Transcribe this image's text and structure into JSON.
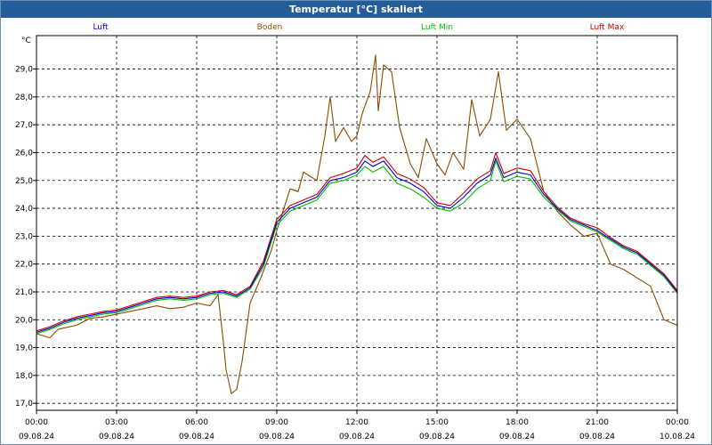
{
  "window": {
    "title": "Temperatur [°C] skaliert"
  },
  "chart_data": {
    "type": "line",
    "title": "Temperatur [°C] skaliert",
    "ylabel": "°C",
    "ylim": [
      16.75,
      30.2
    ],
    "xlim": [
      0,
      24
    ],
    "grid": true,
    "y_ticks": [
      "17,0",
      "18,0",
      "19,0",
      "20,0",
      "21,0",
      "22,0",
      "23,0",
      "24,0",
      "25,0",
      "26,0",
      "27,0",
      "28,0",
      "29,0"
    ],
    "x_ticks": [
      {
        "time": "00:00",
        "date": "09.08.24"
      },
      {
        "time": "03:00",
        "date": "09.08.24"
      },
      {
        "time": "06:00",
        "date": "09.08.24"
      },
      {
        "time": "09:00",
        "date": "09.08.24"
      },
      {
        "time": "12:00",
        "date": "09.08.24"
      },
      {
        "time": "15:00",
        "date": "09.08.24"
      },
      {
        "time": "18:00",
        "date": "09.08.24"
      },
      {
        "time": "21:00",
        "date": "09.08.24"
      },
      {
        "time": "00:00",
        "date": "10.08.24"
      }
    ],
    "series": [
      {
        "name": "Luft",
        "color": "#0000cc",
        "points": [
          [
            0,
            19.55
          ],
          [
            0.5,
            19.7
          ],
          [
            1,
            19.9
          ],
          [
            1.5,
            20.05
          ],
          [
            2,
            20.15
          ],
          [
            2.5,
            20.25
          ],
          [
            3,
            20.3
          ],
          [
            3.5,
            20.45
          ],
          [
            4,
            20.6
          ],
          [
            4.5,
            20.75
          ],
          [
            5,
            20.8
          ],
          [
            5.5,
            20.75
          ],
          [
            6,
            20.8
          ],
          [
            6.5,
            20.95
          ],
          [
            7,
            21.0
          ],
          [
            7.5,
            20.85
          ],
          [
            8,
            21.15
          ],
          [
            8.5,
            22.0
          ],
          [
            9,
            23.5
          ],
          [
            9.5,
            24.0
          ],
          [
            10,
            24.2
          ],
          [
            10.5,
            24.4
          ],
          [
            11,
            25.0
          ],
          [
            11.5,
            25.1
          ],
          [
            12,
            25.3
          ],
          [
            12.3,
            25.7
          ],
          [
            12.6,
            25.5
          ],
          [
            13,
            25.7
          ],
          [
            13.5,
            25.1
          ],
          [
            14,
            24.9
          ],
          [
            14.5,
            24.6
          ],
          [
            15,
            24.1
          ],
          [
            15.5,
            24.0
          ],
          [
            16,
            24.4
          ],
          [
            16.5,
            24.9
          ],
          [
            17,
            25.2
          ],
          [
            17.2,
            25.8
          ],
          [
            17.5,
            25.1
          ],
          [
            18,
            25.3
          ],
          [
            18.5,
            25.2
          ],
          [
            19,
            24.5
          ],
          [
            19.5,
            24.0
          ],
          [
            20,
            23.6
          ],
          [
            20.5,
            23.4
          ],
          [
            21,
            23.2
          ],
          [
            21.5,
            22.9
          ],
          [
            22,
            22.6
          ],
          [
            22.5,
            22.4
          ],
          [
            23,
            22.0
          ],
          [
            23.5,
            21.6
          ],
          [
            24,
            21.0
          ]
        ]
      },
      {
        "name": "Boden",
        "color": "#8b4a00",
        "points": [
          [
            0,
            19.5
          ],
          [
            0.5,
            19.35
          ],
          [
            0.8,
            19.65
          ],
          [
            1,
            19.7
          ],
          [
            1.5,
            19.8
          ],
          [
            2,
            20.05
          ],
          [
            2.5,
            20.1
          ],
          [
            3,
            20.2
          ],
          [
            3.5,
            20.3
          ],
          [
            4,
            20.4
          ],
          [
            4.5,
            20.5
          ],
          [
            5,
            20.4
          ],
          [
            5.5,
            20.45
          ],
          [
            6,
            20.6
          ],
          [
            6.5,
            20.5
          ],
          [
            6.8,
            20.9
          ],
          [
            7,
            19.2
          ],
          [
            7.1,
            18.2
          ],
          [
            7.3,
            17.35
          ],
          [
            7.5,
            17.5
          ],
          [
            7.7,
            18.5
          ],
          [
            8,
            20.6
          ],
          [
            8.4,
            21.5
          ],
          [
            8.8,
            22.5
          ],
          [
            9,
            23.2
          ],
          [
            9.5,
            24.7
          ],
          [
            9.8,
            24.6
          ],
          [
            10,
            25.3
          ],
          [
            10.5,
            25.0
          ],
          [
            10.8,
            26.6
          ],
          [
            11,
            28.0
          ],
          [
            11.2,
            26.4
          ],
          [
            11.5,
            26.9
          ],
          [
            11.8,
            26.4
          ],
          [
            12,
            26.6
          ],
          [
            12.2,
            27.4
          ],
          [
            12.5,
            28.2
          ],
          [
            12.7,
            29.5
          ],
          [
            12.8,
            27.5
          ],
          [
            13,
            29.15
          ],
          [
            13.3,
            28.9
          ],
          [
            13.6,
            26.9
          ],
          [
            14,
            25.6
          ],
          [
            14.3,
            25.1
          ],
          [
            14.6,
            26.5
          ],
          [
            15,
            25.6
          ],
          [
            15.3,
            25.2
          ],
          [
            15.6,
            26.0
          ],
          [
            16,
            25.4
          ],
          [
            16.3,
            27.9
          ],
          [
            16.6,
            26.6
          ],
          [
            17,
            27.2
          ],
          [
            17.3,
            28.9
          ],
          [
            17.6,
            26.8
          ],
          [
            18,
            27.2
          ],
          [
            18.5,
            26.5
          ],
          [
            19,
            24.6
          ],
          [
            19.5,
            23.9
          ],
          [
            20,
            23.4
          ],
          [
            20.5,
            23.0
          ],
          [
            21,
            23.1
          ],
          [
            21.5,
            22.0
          ],
          [
            22,
            21.8
          ],
          [
            22.5,
            21.5
          ],
          [
            23,
            21.2
          ],
          [
            23.5,
            20.0
          ],
          [
            24,
            19.8
          ]
        ]
      },
      {
        "name": "Luft Min",
        "color": "#00bb00",
        "points": [
          [
            0,
            19.5
          ],
          [
            0.5,
            19.65
          ],
          [
            1,
            19.85
          ],
          [
            1.5,
            20.0
          ],
          [
            2,
            20.1
          ],
          [
            2.5,
            20.2
          ],
          [
            3,
            20.25
          ],
          [
            3.5,
            20.4
          ],
          [
            4,
            20.55
          ],
          [
            4.5,
            20.7
          ],
          [
            5,
            20.75
          ],
          [
            5.5,
            20.7
          ],
          [
            6,
            20.75
          ],
          [
            6.5,
            20.9
          ],
          [
            7,
            20.95
          ],
          [
            7.5,
            20.8
          ],
          [
            8,
            21.1
          ],
          [
            8.5,
            21.9
          ],
          [
            9,
            23.4
          ],
          [
            9.5,
            23.9
          ],
          [
            10,
            24.1
          ],
          [
            10.5,
            24.3
          ],
          [
            11,
            24.9
          ],
          [
            11.5,
            25.0
          ],
          [
            12,
            25.2
          ],
          [
            12.3,
            25.5
          ],
          [
            12.6,
            25.3
          ],
          [
            13,
            25.5
          ],
          [
            13.5,
            24.9
          ],
          [
            14,
            24.7
          ],
          [
            14.5,
            24.4
          ],
          [
            15,
            24.0
          ],
          [
            15.5,
            23.9
          ],
          [
            16,
            24.2
          ],
          [
            16.5,
            24.7
          ],
          [
            17,
            25.0
          ],
          [
            17.2,
            25.7
          ],
          [
            17.5,
            24.95
          ],
          [
            18,
            25.15
          ],
          [
            18.5,
            25.05
          ],
          [
            19,
            24.4
          ],
          [
            19.5,
            23.95
          ],
          [
            20,
            23.55
          ],
          [
            20.5,
            23.35
          ],
          [
            21,
            23.15
          ],
          [
            21.5,
            22.85
          ],
          [
            22,
            22.55
          ],
          [
            22.5,
            22.35
          ],
          [
            23,
            21.95
          ],
          [
            23.5,
            21.55
          ],
          [
            24,
            20.95
          ]
        ]
      },
      {
        "name": "Luft Max",
        "color": "#cc0000",
        "points": [
          [
            0,
            19.6
          ],
          [
            0.5,
            19.75
          ],
          [
            1,
            19.95
          ],
          [
            1.5,
            20.1
          ],
          [
            2,
            20.2
          ],
          [
            2.5,
            20.3
          ],
          [
            3,
            20.35
          ],
          [
            3.5,
            20.5
          ],
          [
            4,
            20.65
          ],
          [
            4.5,
            20.8
          ],
          [
            5,
            20.85
          ],
          [
            5.5,
            20.8
          ],
          [
            6,
            20.85
          ],
          [
            6.5,
            21.0
          ],
          [
            7,
            21.05
          ],
          [
            7.5,
            20.9
          ],
          [
            8,
            21.2
          ],
          [
            8.5,
            22.1
          ],
          [
            9,
            23.6
          ],
          [
            9.5,
            24.1
          ],
          [
            10,
            24.3
          ],
          [
            10.5,
            24.5
          ],
          [
            11,
            25.1
          ],
          [
            11.5,
            25.25
          ],
          [
            12,
            25.45
          ],
          [
            12.3,
            25.9
          ],
          [
            12.6,
            25.65
          ],
          [
            13,
            25.85
          ],
          [
            13.5,
            25.25
          ],
          [
            14,
            25.05
          ],
          [
            14.5,
            24.75
          ],
          [
            15,
            24.2
          ],
          [
            15.5,
            24.1
          ],
          [
            16,
            24.55
          ],
          [
            16.5,
            25.05
          ],
          [
            17,
            25.35
          ],
          [
            17.2,
            26.0
          ],
          [
            17.5,
            25.25
          ],
          [
            18,
            25.45
          ],
          [
            18.5,
            25.35
          ],
          [
            19,
            24.6
          ],
          [
            19.5,
            24.05
          ],
          [
            20,
            23.65
          ],
          [
            20.5,
            23.45
          ],
          [
            21,
            23.3
          ],
          [
            21.5,
            22.95
          ],
          [
            22,
            22.65
          ],
          [
            22.5,
            22.45
          ],
          [
            23,
            22.05
          ],
          [
            23.5,
            21.65
          ],
          [
            24,
            21.05
          ]
        ]
      }
    ]
  }
}
